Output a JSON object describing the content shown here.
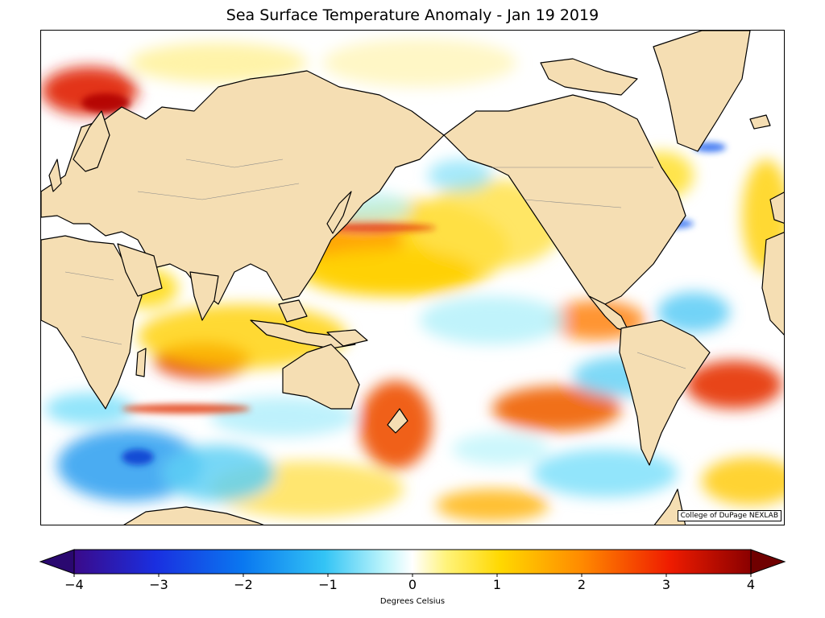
{
  "title": "Sea Surface Temperature Anomaly - Jan 19 2019",
  "credit": "College of DuPage NEXLAB",
  "colorbar": {
    "label": "Degrees Celsius",
    "range": [
      -4,
      4
    ],
    "ticks": [
      "−4",
      "−3",
      "−2",
      "−1",
      "0",
      "1",
      "2",
      "3",
      "4"
    ],
    "stops": [
      "#3a0a8a",
      "#1a2fe0",
      "#0a78f0",
      "#33c4f5",
      "#bff5fb",
      "#ffffff",
      "#fff37a",
      "#ffd800",
      "#ff8a00",
      "#ef1c00",
      "#8a0000"
    ]
  },
  "palette": {
    "land": "#f5deb3",
    "coast": "#000000",
    "ocean_neutral": "#ffffff",
    "cold": "#5fd0f5",
    "deep_cold": "#1a5ff0",
    "warm": "#ffd400",
    "hot": "#e83000"
  }
}
